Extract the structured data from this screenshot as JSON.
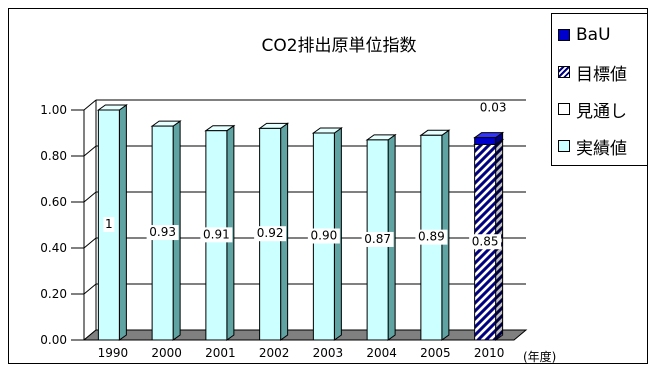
{
  "chart_data": {
    "type": "bar",
    "title": "CO2排出原単位指数",
    "xlabel": "(年度)",
    "ylabel": "",
    "ylim": [
      0,
      1.0
    ],
    "y_ticks": [
      "0.00",
      "0.20",
      "0.40",
      "0.60",
      "0.80",
      "1.00"
    ],
    "grid": true,
    "legend_position": "top-right",
    "categories": [
      "1990",
      "2000",
      "2001",
      "2002",
      "2003",
      "2004",
      "2005",
      "2010"
    ],
    "series": [
      {
        "name": "実績値",
        "color": "#ccffff",
        "values": [
          1.0,
          0.93,
          0.91,
          0.92,
          0.9,
          0.87,
          0.89,
          null
        ],
        "labels": [
          "1",
          "0.93",
          "0.91",
          "0.92",
          "0.90",
          "0.87",
          "0.89",
          ""
        ]
      },
      {
        "name": "目標値",
        "color": "#000080",
        "pattern": "diagonal-stripes",
        "values": [
          null,
          null,
          null,
          null,
          null,
          null,
          null,
          0.85
        ],
        "labels": [
          "",
          "",
          "",
          "",
          "",
          "",
          "",
          "0.85"
        ]
      },
      {
        "name": "BaU",
        "color": "#0000cc",
        "values": [
          null,
          null,
          null,
          null,
          null,
          null,
          null,
          0.03
        ],
        "labels": [
          "",
          "",
          "",
          "",
          "",
          "",
          "",
          "0.03"
        ]
      },
      {
        "name": "見通し",
        "color": "#ffffff",
        "values": [
          null,
          null,
          null,
          null,
          null,
          null,
          null,
          null
        ],
        "labels": [
          "",
          "",
          "",
          "",
          "",
          "",
          "",
          ""
        ]
      }
    ],
    "legend": [
      "BaU",
      "目標値",
      "見通し",
      "実績値"
    ]
  }
}
